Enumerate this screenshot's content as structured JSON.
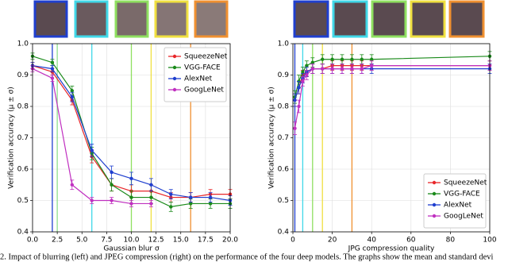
{
  "chart_data": [
    {
      "type": "line",
      "xlabel": "Gaussian blur σ",
      "ylabel": "Verification accuracy (μ ± σ)",
      "x": [
        0,
        2,
        4,
        6,
        8,
        10,
        12,
        14,
        16,
        18,
        20
      ],
      "xlim": [
        0,
        20
      ],
      "ylim": [
        0.4,
        1
      ],
      "xticks": [
        {
          "value": 0,
          "label": "0.0"
        },
        2.5,
        {
          "value": 5,
          "label": "5.0"
        },
        7.5,
        {
          "value": 10,
          "label": "10.0"
        },
        12.5,
        {
          "value": 15,
          "label": "15.0"
        },
        17.5,
        {
          "value": 20,
          "label": "20.0"
        }
      ],
      "yticks": [
        0.4,
        0.5,
        0.6,
        0.7,
        0.8,
        0.9,
        {
          "value": 1,
          "label": "1.0"
        }
      ],
      "grid": true,
      "legend": "upper right",
      "vlines": [
        {
          "x": 2,
          "color": "#1f3fcf"
        },
        {
          "x": 2.5,
          "color": "#8fe08f"
        },
        {
          "x": 6,
          "color": "#40d8e8"
        },
        {
          "x": 10,
          "color": "#8fe060"
        },
        {
          "x": 12,
          "color": "#f0e040"
        },
        {
          "x": 16,
          "color": "#f09030"
        }
      ],
      "series": [
        {
          "name": "SqueezeNet",
          "color": "#e8262a",
          "values": [
            0.93,
            0.91,
            0.82,
            0.64,
            0.55,
            0.53,
            0.53,
            0.51,
            0.51,
            0.52,
            0.52
          ],
          "errors": [
            0.01,
            0.01,
            0.015,
            0.02,
            0.02,
            0.02,
            0.02,
            0.015,
            0.015,
            0.015,
            0.015
          ]
        },
        {
          "name": "VGG-FACE",
          "color": "#1a8a1a",
          "values": [
            0.96,
            0.94,
            0.85,
            0.65,
            0.55,
            0.51,
            0.51,
            0.48,
            0.49,
            0.49,
            0.49
          ],
          "errors": [
            0.01,
            0.01,
            0.015,
            0.02,
            0.02,
            0.02,
            0.02,
            0.015,
            0.015,
            0.015,
            0.015
          ]
        },
        {
          "name": "AlexNet",
          "color": "#1f3fcf",
          "values": [
            0.93,
            0.92,
            0.83,
            0.66,
            0.59,
            0.57,
            0.55,
            0.52,
            0.51,
            0.51,
            0.5
          ],
          "errors": [
            0.01,
            0.01,
            0.015,
            0.02,
            0.02,
            0.02,
            0.02,
            0.015,
            0.015,
            0.015,
            0.015
          ]
        },
        {
          "name": "GoogLeNet",
          "color": "#c030c0",
          "values": [
            0.92,
            0.89,
            0.55,
            0.5,
            0.5,
            0.49,
            0.49,
            null,
            null,
            null,
            null
          ],
          "errors": [
            0.01,
            0.01,
            0.015,
            0.01,
            0.01,
            0.01,
            0.01,
            null,
            null,
            null,
            null
          ]
        }
      ]
    },
    {
      "type": "line",
      "xlabel": "JPG compression quality",
      "ylabel": "Verification accuracy (μ ± σ)",
      "x": [
        1,
        3,
        5,
        7,
        10,
        15,
        20,
        25,
        30,
        35,
        40,
        100
      ],
      "xlim": [
        0,
        100
      ],
      "ylim": [
        0.4,
        1
      ],
      "xticks": [
        0,
        20,
        40,
        60,
        80,
        100
      ],
      "yticks": [
        0.4,
        0.5,
        0.6,
        0.7,
        0.8,
        0.9,
        {
          "value": 1,
          "label": "1.0"
        }
      ],
      "grid": true,
      "legend": "lower right",
      "vlines": [
        {
          "x": 1,
          "color": "#1f3fcf"
        },
        {
          "x": 5,
          "color": "#40d8e8"
        },
        {
          "x": 10,
          "color": "#8fe060"
        },
        {
          "x": 15,
          "color": "#f0e040"
        },
        {
          "x": 30,
          "color": "#f09030"
        }
      ],
      "series": [
        {
          "name": "SqueezeNet",
          "color": "#e8262a",
          "values": [
            0.82,
            0.86,
            0.9,
            0.91,
            0.92,
            0.92,
            0.93,
            0.93,
            0.93,
            0.93,
            0.93,
            0.93
          ],
          "errors": [
            0.02,
            0.02,
            0.015,
            0.015,
            0.015,
            0.015,
            0.015,
            0.015,
            0.015,
            0.015,
            0.015,
            0.015
          ]
        },
        {
          "name": "VGG-FACE",
          "color": "#1a8a1a",
          "values": [
            0.83,
            0.88,
            0.91,
            0.93,
            0.94,
            0.95,
            0.95,
            0.95,
            0.95,
            0.95,
            0.95,
            0.96
          ],
          "errors": [
            0.02,
            0.02,
            0.015,
            0.015,
            0.015,
            0.015,
            0.015,
            0.015,
            0.015,
            0.015,
            0.015,
            0.015
          ]
        },
        {
          "name": "AlexNet",
          "color": "#1f3fcf",
          "values": [
            0.82,
            0.86,
            0.89,
            0.91,
            0.92,
            0.92,
            0.92,
            0.92,
            0.92,
            0.92,
            0.92,
            0.92
          ],
          "errors": [
            0.02,
            0.02,
            0.015,
            0.015,
            0.015,
            0.015,
            0.015,
            0.015,
            0.015,
            0.015,
            0.015,
            0.015
          ]
        },
        {
          "name": "GoogLeNet",
          "color": "#c030c0",
          "values": [
            0.73,
            0.8,
            0.88,
            0.9,
            0.92,
            0.92,
            0.92,
            0.92,
            0.92,
            0.92,
            0.93,
            0.93
          ],
          "errors": [
            0.02,
            0.02,
            0.015,
            0.015,
            0.015,
            0.015,
            0.015,
            0.015,
            0.015,
            0.015,
            0.015,
            0.015
          ]
        }
      ]
    }
  ],
  "caption": "2.  Impact of blurring (left) and JPEG compression (right) on the performance of the four deep models. The graphs show the mean and standard devi"
}
